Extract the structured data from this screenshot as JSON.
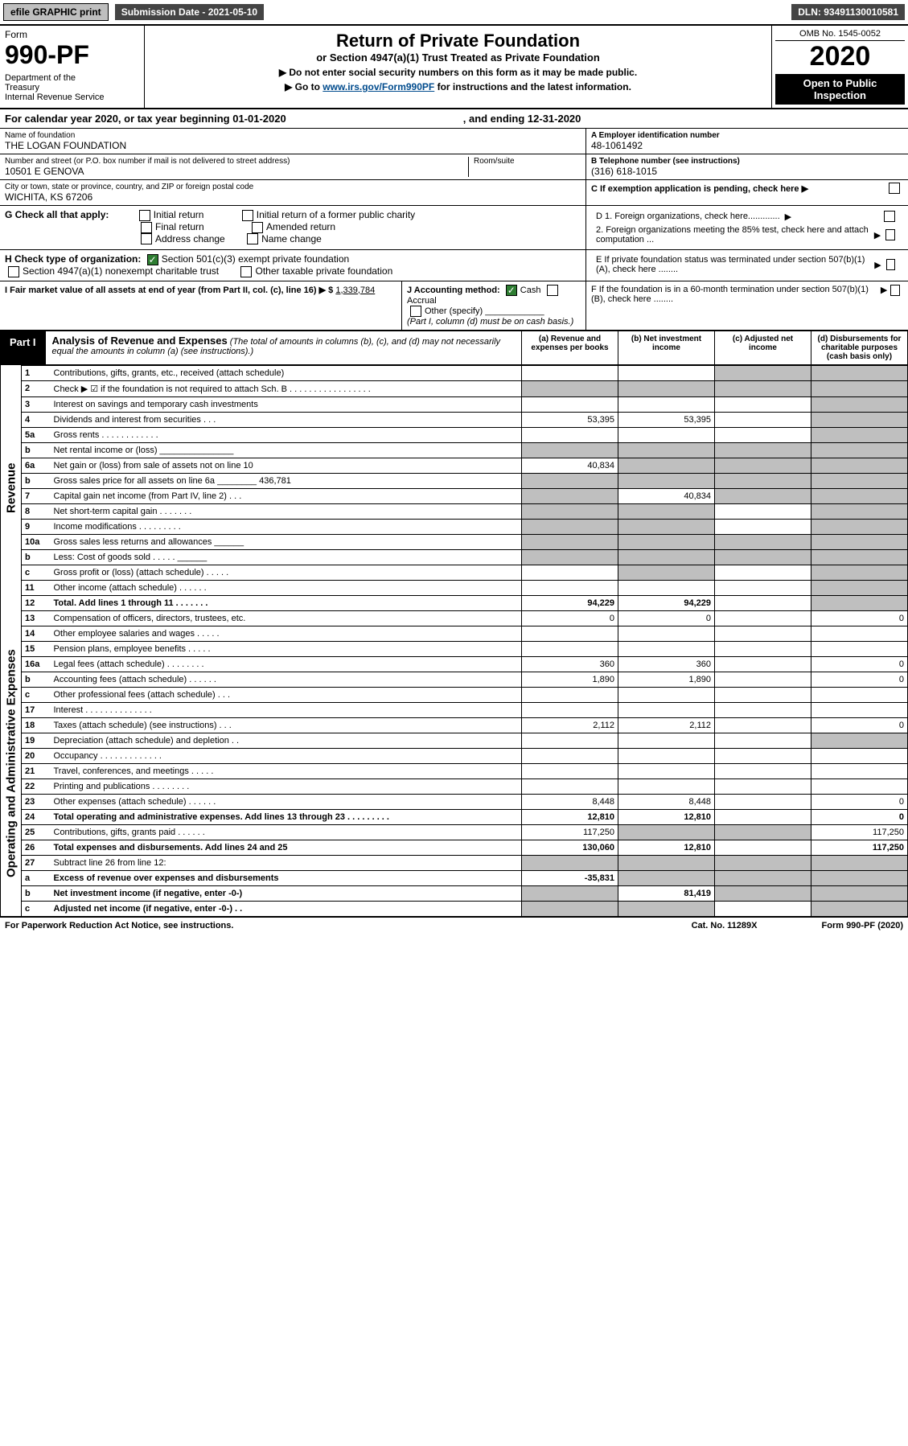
{
  "topbar": {
    "efile": "efile GRAPHIC print",
    "submission": "Submission Date - 2021-05-10",
    "dln": "DLN: 93491130010581"
  },
  "header": {
    "form_word": "Form",
    "form_num": "990-PF",
    "dept": "Department of the Treasury\nInternal Revenue Service",
    "title": "Return of Private Foundation",
    "subtitle": "or Section 4947(a)(1) Trust Treated as Private Foundation",
    "instr1": "▶ Do not enter social security numbers on this form as it may be made public.",
    "instr2": "▶ Go to www.irs.gov/Form990PF for instructions and the latest information.",
    "instr2_link": "www.irs.gov/Form990PF",
    "omb": "OMB No. 1545-0052",
    "year": "2020",
    "open": "Open to Public Inspection"
  },
  "cal": {
    "text": "For calendar year 2020, or tax year beginning 01-01-2020",
    "ending": ", and ending 12-31-2020"
  },
  "info": {
    "name_label": "Name of foundation",
    "name": "THE LOGAN FOUNDATION",
    "addr_label": "Number and street (or P.O. box number if mail is not delivered to street address)",
    "addr": "10501 E GENOVA",
    "room_label": "Room/suite",
    "city_label": "City or town, state or province, country, and ZIP or foreign postal code",
    "city": "WICHITA, KS  67206",
    "ein_label": "A Employer identification number",
    "ein": "48-1061492",
    "tel_label": "B Telephone number (see instructions)",
    "tel": "(316) 618-1015",
    "c_label": "C If exemption application is pending, check here ▶"
  },
  "sectionG": {
    "label": "G Check all that apply:",
    "opts": [
      "Initial return",
      "Final return",
      "Address change",
      "Initial return of a former public charity",
      "Amended return",
      "Name change"
    ]
  },
  "sectionD": {
    "d1": "D 1. Foreign organizations, check here.............",
    "d2": "2. Foreign organizations meeting the 85% test, check here and attach computation ...",
    "e": "E  If private foundation status was terminated under section 507(b)(1)(A), check here ........",
    "f": "F  If the foundation is in a 60-month termination under section 507(b)(1)(B), check here ........"
  },
  "sectionH": {
    "label": "H Check type of organization:",
    "opt1": "Section 501(c)(3) exempt private foundation",
    "opt2": "Section 4947(a)(1) nonexempt charitable trust",
    "opt3": "Other taxable private foundation"
  },
  "sectionI": {
    "label": "I Fair market value of all assets at end of year (from Part II, col. (c), line 16) ▶ $",
    "value": "1,339,784"
  },
  "sectionJ": {
    "label": "J Accounting method:",
    "cash": "Cash",
    "accrual": "Accrual",
    "other": "Other (specify)",
    "note": "(Part I, column (d) must be on cash basis.)"
  },
  "part1": {
    "label": "Part I",
    "title": "Analysis of Revenue and Expenses",
    "subtitle": "(The total of amounts in columns (b), (c), and (d) may not necessarily equal the amounts in column (a) (see instructions).)",
    "cols": {
      "a": "(a) Revenue and expenses per books",
      "b": "(b) Net investment income",
      "c": "(c) Adjusted net income",
      "d": "(d) Disbursements for charitable purposes (cash basis only)"
    }
  },
  "vert": {
    "revenue": "Revenue",
    "expenses": "Operating and Administrative Expenses"
  },
  "rows": [
    {
      "n": "1",
      "d": "Contributions, gifts, grants, etc., received (attach schedule)",
      "a": "",
      "b": "",
      "c": "",
      "dd": "",
      "c_sh": true,
      "d_sh": true
    },
    {
      "n": "2",
      "d": "Check ▶ ☑ if the foundation is not required to attach Sch. B   . . . . . . . . . . . . . . . . .",
      "a": "",
      "b": "",
      "c": "",
      "dd": "",
      "a_sh": true,
      "b_sh": true,
      "c_sh": true,
      "d_sh": true
    },
    {
      "n": "3",
      "d": "Interest on savings and temporary cash investments",
      "a": "",
      "b": "",
      "c": "",
      "dd": "",
      "d_sh": true
    },
    {
      "n": "4",
      "d": "Dividends and interest from securities   . . .",
      "a": "53,395",
      "b": "53,395",
      "c": "",
      "dd": "",
      "d_sh": true
    },
    {
      "n": "5a",
      "d": "Gross rents   . . . . . . . . . . . .",
      "a": "",
      "b": "",
      "c": "",
      "dd": "",
      "d_sh": true
    },
    {
      "n": "b",
      "d": "Net rental income or (loss)  _______________",
      "a": "",
      "b": "",
      "c": "",
      "dd": "",
      "a_sh": true,
      "b_sh": true,
      "c_sh": true,
      "d_sh": true
    },
    {
      "n": "6a",
      "d": "Net gain or (loss) from sale of assets not on line 10",
      "a": "40,834",
      "b": "",
      "c": "",
      "dd": "",
      "b_sh": true,
      "c_sh": true,
      "d_sh": true
    },
    {
      "n": "b",
      "d": "Gross sales price for all assets on line 6a ________ 436,781",
      "a": "",
      "b": "",
      "c": "",
      "dd": "",
      "a_sh": true,
      "b_sh": true,
      "c_sh": true,
      "d_sh": true
    },
    {
      "n": "7",
      "d": "Capital gain net income (from Part IV, line 2)   . . .",
      "a": "",
      "b": "40,834",
      "c": "",
      "dd": "",
      "a_sh": true,
      "c_sh": true,
      "d_sh": true
    },
    {
      "n": "8",
      "d": "Net short-term capital gain   . . . . . . .",
      "a": "",
      "b": "",
      "c": "",
      "dd": "",
      "a_sh": true,
      "b_sh": true,
      "d_sh": true
    },
    {
      "n": "9",
      "d": "Income modifications   . . . . . . . . .",
      "a": "",
      "b": "",
      "c": "",
      "dd": "",
      "a_sh": true,
      "b_sh": true,
      "d_sh": true
    },
    {
      "n": "10a",
      "d": "Gross sales less returns and allowances  ______",
      "a": "",
      "b": "",
      "c": "",
      "dd": "",
      "a_sh": true,
      "b_sh": true,
      "c_sh": true,
      "d_sh": true
    },
    {
      "n": "b",
      "d": "Less: Cost of goods sold   . . . . .  ______",
      "a": "",
      "b": "",
      "c": "",
      "dd": "",
      "a_sh": true,
      "b_sh": true,
      "c_sh": true,
      "d_sh": true
    },
    {
      "n": "c",
      "d": "Gross profit or (loss) (attach schedule)   . . . . .",
      "a": "",
      "b": "",
      "c": "",
      "dd": "",
      "b_sh": true,
      "d_sh": true
    },
    {
      "n": "11",
      "d": "Other income (attach schedule)   . . . . . .",
      "a": "",
      "b": "",
      "c": "",
      "dd": "",
      "d_sh": true
    },
    {
      "n": "12",
      "d": "Total. Add lines 1 through 11   . . . . . . .",
      "a": "94,229",
      "b": "94,229",
      "c": "",
      "dd": "",
      "d_sh": true,
      "bold": true
    },
    {
      "n": "13",
      "d": "Compensation of officers, directors, trustees, etc.",
      "a": "0",
      "b": "0",
      "c": "",
      "dd": "0"
    },
    {
      "n": "14",
      "d": "Other employee salaries and wages   . . . . .",
      "a": "",
      "b": "",
      "c": "",
      "dd": ""
    },
    {
      "n": "15",
      "d": "Pension plans, employee benefits   . . . . .",
      "a": "",
      "b": "",
      "c": "",
      "dd": ""
    },
    {
      "n": "16a",
      "d": "Legal fees (attach schedule)   . . . . . . . .",
      "a": "360",
      "b": "360",
      "c": "",
      "dd": "0"
    },
    {
      "n": "b",
      "d": "Accounting fees (attach schedule)   . . . . . .",
      "a": "1,890",
      "b": "1,890",
      "c": "",
      "dd": "0"
    },
    {
      "n": "c",
      "d": "Other professional fees (attach schedule)   . . .",
      "a": "",
      "b": "",
      "c": "",
      "dd": ""
    },
    {
      "n": "17",
      "d": "Interest   . . . . . . . . . . . . . .",
      "a": "",
      "b": "",
      "c": "",
      "dd": ""
    },
    {
      "n": "18",
      "d": "Taxes (attach schedule) (see instructions)   . . .",
      "a": "2,112",
      "b": "2,112",
      "c": "",
      "dd": "0"
    },
    {
      "n": "19",
      "d": "Depreciation (attach schedule) and depletion   . .",
      "a": "",
      "b": "",
      "c": "",
      "dd": "",
      "d_sh": true
    },
    {
      "n": "20",
      "d": "Occupancy   . . . . . . . . . . . . .",
      "a": "",
      "b": "",
      "c": "",
      "dd": ""
    },
    {
      "n": "21",
      "d": "Travel, conferences, and meetings   . . . . .",
      "a": "",
      "b": "",
      "c": "",
      "dd": ""
    },
    {
      "n": "22",
      "d": "Printing and publications   . . . . . . . .",
      "a": "",
      "b": "",
      "c": "",
      "dd": ""
    },
    {
      "n": "23",
      "d": "Other expenses (attach schedule)   . . . . . .",
      "a": "8,448",
      "b": "8,448",
      "c": "",
      "dd": "0"
    },
    {
      "n": "24",
      "d": "Total operating and administrative expenses. Add lines 13 through 23   . . . . . . . . .",
      "a": "12,810",
      "b": "12,810",
      "c": "",
      "dd": "0",
      "bold": true
    },
    {
      "n": "25",
      "d": "Contributions, gifts, grants paid   . . . . . .",
      "a": "117,250",
      "b": "",
      "c": "",
      "dd": "117,250",
      "b_sh": true,
      "c_sh": true
    },
    {
      "n": "26",
      "d": "Total expenses and disbursements. Add lines 24 and 25",
      "a": "130,060",
      "b": "12,810",
      "c": "",
      "dd": "117,250",
      "bold": true
    },
    {
      "n": "27",
      "d": "Subtract line 26 from line 12:",
      "a": "",
      "b": "",
      "c": "",
      "dd": "",
      "a_sh": true,
      "b_sh": true,
      "c_sh": true,
      "d_sh": true
    },
    {
      "n": "a",
      "d": "Excess of revenue over expenses and disbursements",
      "a": "-35,831",
      "b": "",
      "c": "",
      "dd": "",
      "b_sh": true,
      "c_sh": true,
      "d_sh": true,
      "bold": true
    },
    {
      "n": "b",
      "d": "Net investment income (if negative, enter -0-)",
      "a": "",
      "b": "81,419",
      "c": "",
      "dd": "",
      "a_sh": true,
      "c_sh": true,
      "d_sh": true,
      "bold": true
    },
    {
      "n": "c",
      "d": "Adjusted net income (if negative, enter -0-)   . .",
      "a": "",
      "b": "",
      "c": "",
      "dd": "",
      "a_sh": true,
      "b_sh": true,
      "d_sh": true,
      "bold": true
    }
  ],
  "footer": {
    "left": "For Paperwork Reduction Act Notice, see instructions.",
    "mid": "Cat. No. 11289X",
    "right": "Form 990-PF (2020)"
  }
}
